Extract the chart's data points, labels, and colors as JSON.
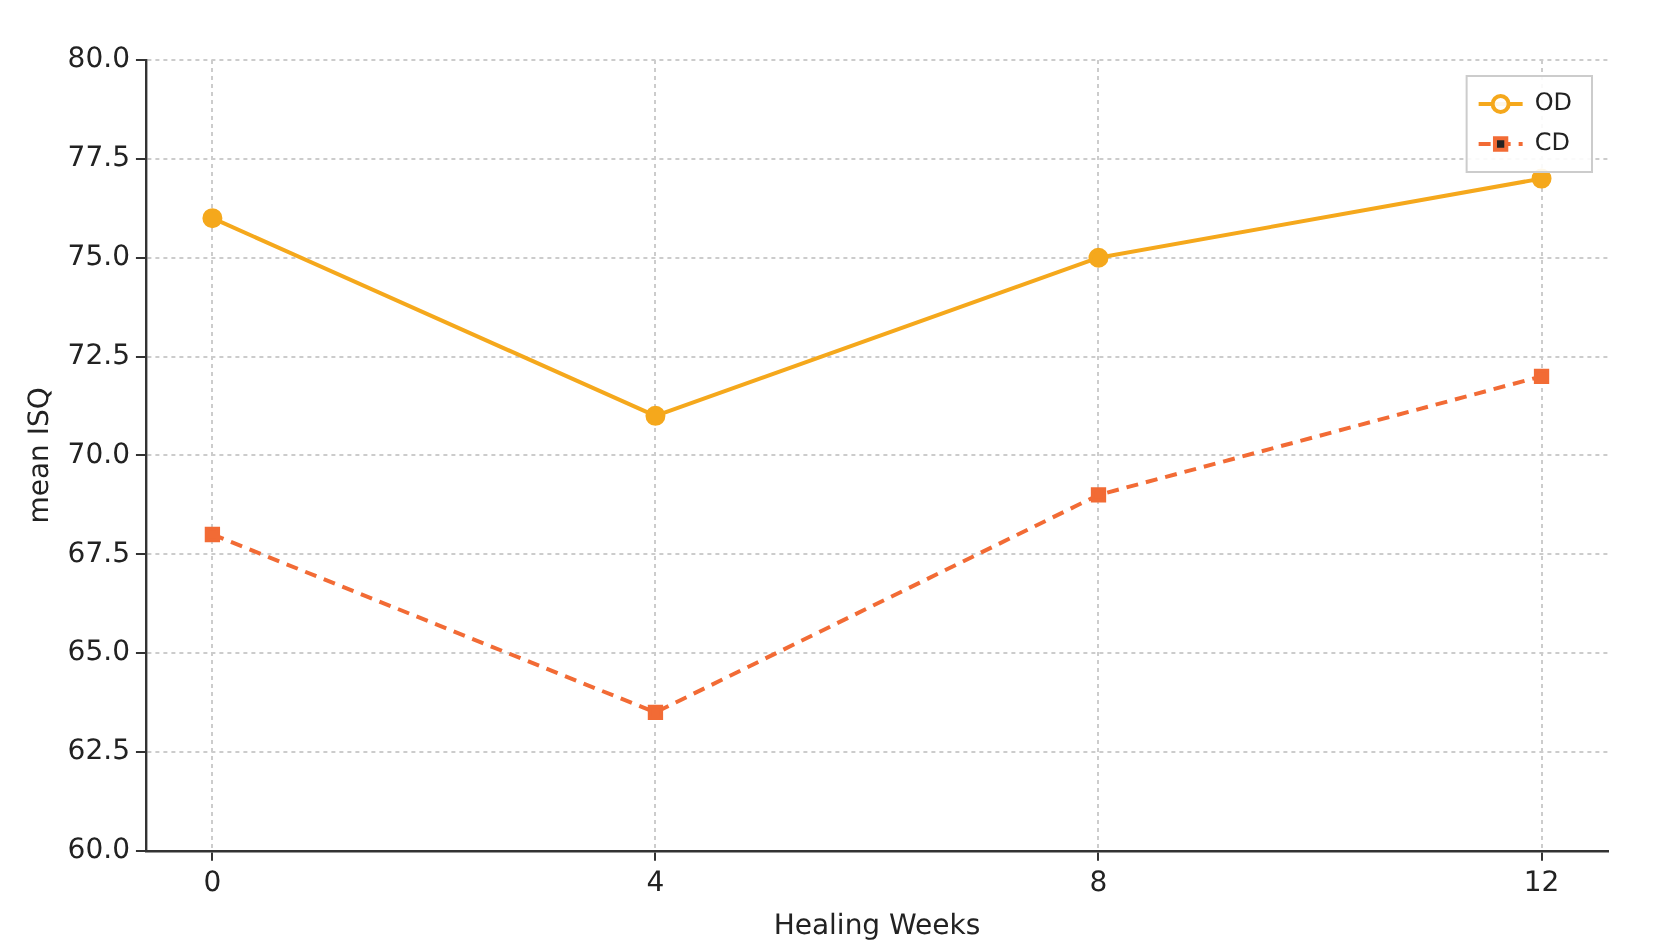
{
  "chart_data": {
    "type": "line",
    "xlabel": "Healing Weeks",
    "ylabel": "mean ISQ",
    "x": [
      0,
      4,
      8,
      12
    ],
    "series": [
      {
        "name": "OD",
        "color": "#f5a81c",
        "values": [
          76,
          71,
          75,
          77
        ],
        "marker": "circle",
        "line_style": "solid"
      },
      {
        "name": "CD",
        "color": "#f26b35",
        "values": [
          68,
          63.5,
          69,
          72
        ],
        "marker": "square",
        "line_style": "dashed"
      }
    ],
    "xlim": [
      -0.6,
      12.6
    ],
    "xticks": [
      0,
      4,
      8,
      12
    ],
    "ylim": [
      60,
      80
    ],
    "yticks": [
      {
        "value": 60,
        "label": "60.0"
      },
      {
        "value": 62.5,
        "label": "62.5"
      },
      {
        "value": 65,
        "label": "65.0"
      },
      {
        "value": 67.5,
        "label": "67.5"
      },
      {
        "value": 70,
        "label": "70.0"
      },
      {
        "value": 72.5,
        "label": "72.5"
      },
      {
        "value": 75,
        "label": "75.0"
      },
      {
        "value": 77.5,
        "label": "77.5"
      },
      {
        "value": 80,
        "label": "80.0"
      }
    ],
    "grid": true,
    "legend": "top right"
  }
}
